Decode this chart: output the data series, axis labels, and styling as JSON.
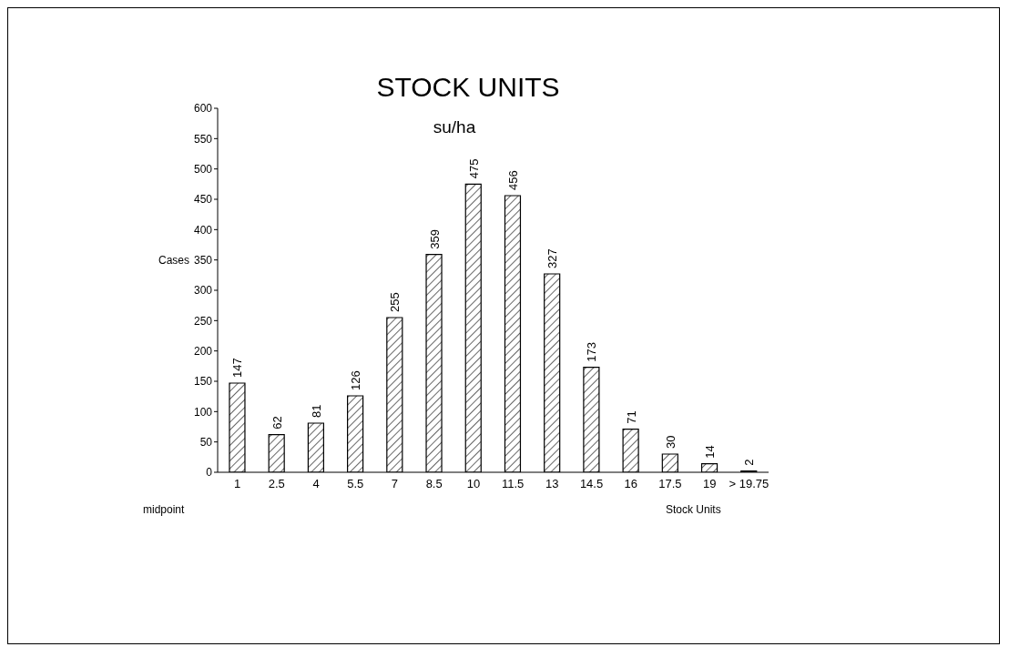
{
  "chart_data": {
    "type": "bar",
    "title": "STOCK UNITS",
    "subtitle": "su/ha",
    "ylabel": "Cases",
    "xlabel": "Stock Units",
    "annotations": [
      "midpoint"
    ],
    "categories": [
      "1",
      "2.5",
      "4",
      "5.5",
      "7",
      "8.5",
      "10",
      "11.5",
      "13",
      "14.5",
      "16",
      "17.5",
      "19",
      "> 19.75"
    ],
    "values": [
      147,
      62,
      81,
      126,
      255,
      359,
      475,
      456,
      327,
      173,
      71,
      30,
      14,
      2
    ],
    "color": "#000000",
    "ylim": [
      0,
      600
    ],
    "yticks": [
      0,
      50,
      100,
      150,
      200,
      250,
      300,
      350,
      400,
      450,
      500,
      550,
      600
    ],
    "grid": false,
    "legend": false,
    "data_labels": true
  }
}
